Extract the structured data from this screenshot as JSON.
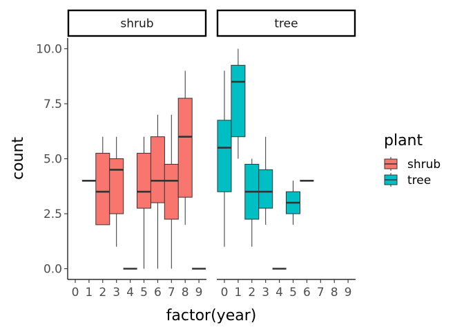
{
  "chart_data": {
    "type": "boxplot",
    "xlabel": "factor(year)",
    "ylabel": "count",
    "ylim": [
      -0.5,
      10.5
    ],
    "y_ticks": [
      0.0,
      2.5,
      5.0,
      7.5,
      10.0
    ],
    "y_tick_labels": [
      "0.0",
      "2.5",
      "5.0",
      "7.5",
      "10.0"
    ],
    "x_categories": [
      "0",
      "1",
      "2",
      "3",
      "4",
      "5",
      "6",
      "7",
      "8",
      "9"
    ],
    "legend": {
      "title": "plant",
      "entries": [
        {
          "name": "shrub",
          "color": "#F8766D"
        },
        {
          "name": "tree",
          "color": "#00BFC4"
        }
      ]
    },
    "facets": [
      {
        "label": "shrub",
        "color": "#F8766D",
        "boxes": [
          {
            "year": 1,
            "min": 4,
            "q1": 4,
            "median": 4,
            "q3": 4,
            "max": 4
          },
          {
            "year": 2,
            "min": 2,
            "q1": 2,
            "median": 3.5,
            "q3": 5.25,
            "max": 6
          },
          {
            "year": 3,
            "min": 1,
            "q1": 2.5,
            "median": 4.5,
            "q3": 5,
            "max": 6
          },
          {
            "year": 4,
            "min": 0,
            "q1": 0,
            "median": 0,
            "q3": 0,
            "max": 0
          },
          {
            "year": 5,
            "min": 0,
            "q1": 2.75,
            "median": 3.5,
            "q3": 5.25,
            "max": 6
          },
          {
            "year": 6,
            "min": 0,
            "q1": 3,
            "median": 4,
            "q3": 6,
            "max": 7
          },
          {
            "year": 7,
            "min": 0,
            "q1": 2.25,
            "median": 4,
            "q3": 4.75,
            "max": 7
          },
          {
            "year": 8,
            "min": 2,
            "q1": 3.25,
            "median": 6,
            "q3": 7.75,
            "max": 9
          },
          {
            "year": 9,
            "min": 0,
            "q1": 0,
            "median": 0,
            "q3": 0,
            "max": 0
          }
        ]
      },
      {
        "label": "tree",
        "color": "#00BFC4",
        "boxes": [
          {
            "year": 0,
            "min": 1,
            "q1": 3.5,
            "median": 5.5,
            "q3": 6.75,
            "max": 9
          },
          {
            "year": 1,
            "min": 5,
            "q1": 6,
            "median": 8.5,
            "q3": 9.25,
            "max": 10
          },
          {
            "year": 2,
            "min": 1,
            "q1": 2.25,
            "median": 3.5,
            "q3": 4.75,
            "max": 5
          },
          {
            "year": 3,
            "min": 2,
            "q1": 2.75,
            "median": 3.5,
            "q3": 4.5,
            "max": 6
          },
          {
            "year": 4,
            "min": 0,
            "q1": 0,
            "median": 0,
            "q3": 0,
            "max": 0
          },
          {
            "year": 5,
            "min": 2,
            "q1": 2.5,
            "median": 3,
            "q3": 3.5,
            "max": 4
          },
          {
            "year": 6,
            "min": 4,
            "q1": 4,
            "median": 4,
            "q3": 4,
            "max": 4
          }
        ]
      }
    ]
  }
}
